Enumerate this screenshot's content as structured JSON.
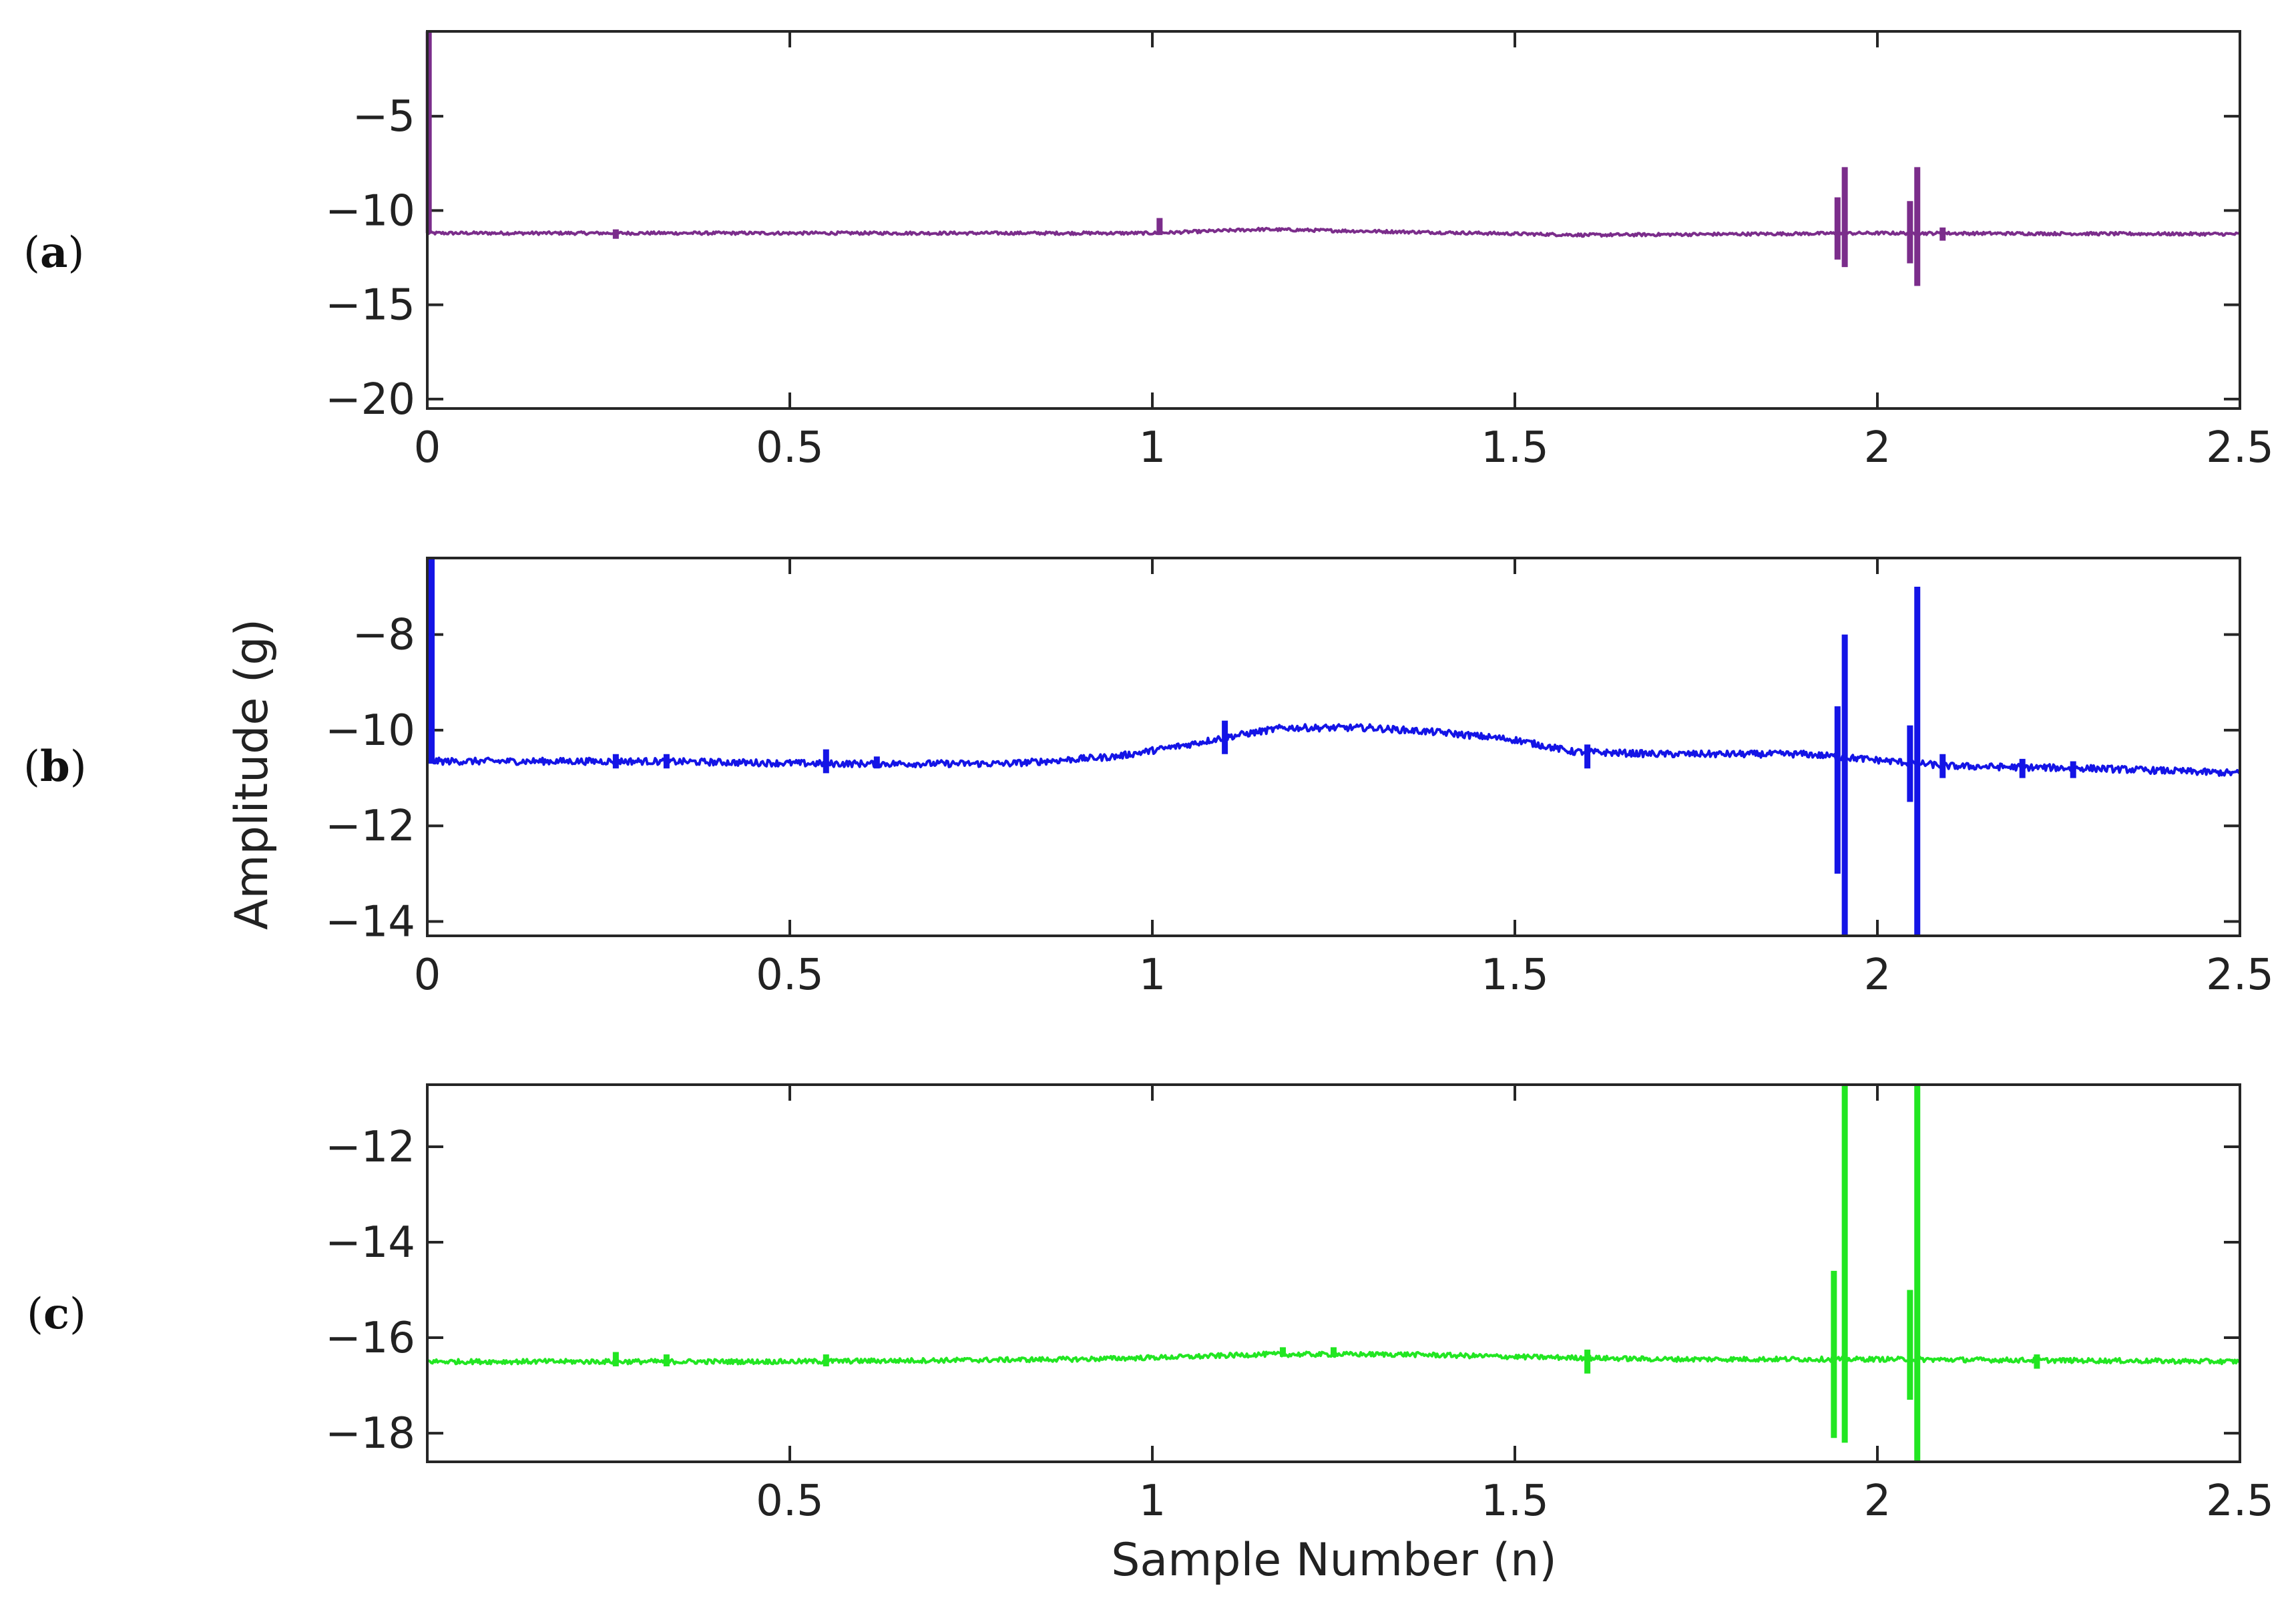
{
  "figure": {
    "xlabel": "Sample Number (n)",
    "ylabel": "Amplitude (g)"
  },
  "chart_data": [
    {
      "type": "line",
      "panel_label": {
        "open": "(",
        "letter": "a",
        "close": ")"
      },
      "color": "#7b2d8b",
      "xlim": [
        0,
        2.5
      ],
      "ylim": [
        -20.5,
        -0.5
      ],
      "xticks": [
        0,
        0.5,
        1,
        1.5,
        2,
        2.5
      ],
      "xtick_labels": [
        "0",
        "0.5",
        "1",
        "1.5",
        "2",
        "2.5"
      ],
      "yticks": [
        -5,
        -10,
        -15,
        -20
      ],
      "ytick_labels": [
        "−5",
        "−10",
        "−15",
        "−20"
      ],
      "baseline": [
        [
          0,
          -11.2
        ],
        [
          0.5,
          -11.2
        ],
        [
          1,
          -11.2
        ],
        [
          1.15,
          -11.0
        ],
        [
          1.3,
          -11.1
        ],
        [
          1.6,
          -11.3
        ],
        [
          2.0,
          -11.2
        ],
        [
          2.5,
          -11.25
        ]
      ],
      "noise": 0.08,
      "spikes": [
        {
          "x": 0.002,
          "ymin": -11.2,
          "ymax": -0.5
        },
        {
          "x": 0.26,
          "ymin": -11.5,
          "ymax": -11.0
        },
        {
          "x": 1.01,
          "ymin": -11.3,
          "ymax": -10.4
        },
        {
          "x": 1.945,
          "ymin": -12.6,
          "ymax": -9.3
        },
        {
          "x": 1.955,
          "ymin": -13.0,
          "ymax": -7.7
        },
        {
          "x": 2.045,
          "ymin": -12.8,
          "ymax": -9.5
        },
        {
          "x": 2.055,
          "ymin": -14.0,
          "ymax": -7.7
        },
        {
          "x": 2.09,
          "ymin": -11.6,
          "ymax": -10.9
        }
      ]
    },
    {
      "type": "line",
      "panel_label": {
        "open": "(",
        "letter": "b",
        "close": ")"
      },
      "color": "#1414e6",
      "xlim": [
        0,
        2.5
      ],
      "ylim": [
        -14.3,
        -6.4
      ],
      "xticks": [
        0,
        0.5,
        1,
        1.5,
        2,
        2.5
      ],
      "xtick_labels": [
        "0",
        "0.5",
        "1",
        "1.5",
        "2",
        "2.5"
      ],
      "yticks": [
        -8,
        -10,
        -12,
        -14
      ],
      "ytick_labels": [
        "−8",
        "−10",
        "−12",
        "−14"
      ],
      "baseline": [
        [
          0,
          -10.65
        ],
        [
          0.3,
          -10.65
        ],
        [
          0.55,
          -10.7
        ],
        [
          0.8,
          -10.7
        ],
        [
          0.95,
          -10.55
        ],
        [
          1.05,
          -10.3
        ],
        [
          1.1,
          -10.15
        ],
        [
          1.18,
          -9.95
        ],
        [
          1.3,
          -9.95
        ],
        [
          1.4,
          -10.05
        ],
        [
          1.5,
          -10.2
        ],
        [
          1.58,
          -10.45
        ],
        [
          1.7,
          -10.5
        ],
        [
          1.9,
          -10.5
        ],
        [
          2.1,
          -10.75
        ],
        [
          2.3,
          -10.8
        ],
        [
          2.5,
          -10.9
        ]
      ],
      "noise": 0.07,
      "spikes": [
        {
          "x": 0.006,
          "ymin": -10.7,
          "ymax": -6.4
        },
        {
          "x": 0.26,
          "ymin": -10.8,
          "ymax": -10.5
        },
        {
          "x": 0.33,
          "ymin": -10.8,
          "ymax": -10.5
        },
        {
          "x": 0.55,
          "ymin": -10.9,
          "ymax": -10.4
        },
        {
          "x": 0.62,
          "ymin": -10.8,
          "ymax": -10.55
        },
        {
          "x": 1.1,
          "ymin": -10.5,
          "ymax": -9.8
        },
        {
          "x": 1.6,
          "ymin": -10.8,
          "ymax": -10.3
        },
        {
          "x": 1.945,
          "ymin": -13.0,
          "ymax": -9.5
        },
        {
          "x": 1.955,
          "ymin": -14.3,
          "ymax": -8.0
        },
        {
          "x": 2.045,
          "ymin": -11.5,
          "ymax": -9.9
        },
        {
          "x": 2.055,
          "ymin": -14.3,
          "ymax": -7.0
        },
        {
          "x": 2.09,
          "ymin": -11.0,
          "ymax": -10.5
        },
        {
          "x": 2.2,
          "ymin": -11.0,
          "ymax": -10.6
        },
        {
          "x": 2.27,
          "ymin": -11.0,
          "ymax": -10.65
        }
      ]
    },
    {
      "type": "line",
      "panel_label": {
        "open": "(",
        "letter": "c",
        "close": ")"
      },
      "color": "#22e622",
      "xlim": [
        0,
        2.5
      ],
      "ylim": [
        -18.6,
        -10.7
      ],
      "xticks": [
        0.5,
        1,
        1.5,
        2,
        2.5
      ],
      "xtick_labels": [
        "0.5",
        "1",
        "1.5",
        "2",
        "2.5"
      ],
      "yticks": [
        -12,
        -14,
        -16,
        -18
      ],
      "ytick_labels": [
        "−12",
        "−14",
        "−16",
        "−18"
      ],
      "baseline": [
        [
          0,
          -16.5
        ],
        [
          0.5,
          -16.5
        ],
        [
          0.9,
          -16.45
        ],
        [
          1.05,
          -16.4
        ],
        [
          1.15,
          -16.35
        ],
        [
          1.35,
          -16.35
        ],
        [
          1.5,
          -16.4
        ],
        [
          1.7,
          -16.45
        ],
        [
          2.0,
          -16.45
        ],
        [
          2.5,
          -16.5
        ]
      ],
      "noise": 0.05,
      "spikes": [
        {
          "x": 0.26,
          "ymin": -16.6,
          "ymax": -16.3
        },
        {
          "x": 0.33,
          "ymin": -16.6,
          "ymax": -16.35
        },
        {
          "x": 0.55,
          "ymin": -16.6,
          "ymax": -16.35
        },
        {
          "x": 1.18,
          "ymin": -16.4,
          "ymax": -16.2
        },
        {
          "x": 1.25,
          "ymin": -16.4,
          "ymax": -16.2
        },
        {
          "x": 1.6,
          "ymin": -16.75,
          "ymax": -16.25
        },
        {
          "x": 1.94,
          "ymin": -18.1,
          "ymax": -14.6
        },
        {
          "x": 1.955,
          "ymin": -18.2,
          "ymax": -10.7
        },
        {
          "x": 2.045,
          "ymin": -17.3,
          "ymax": -15.0
        },
        {
          "x": 2.055,
          "ymin": -18.6,
          "ymax": -10.7
        },
        {
          "x": 2.22,
          "ymin": -16.65,
          "ymax": -16.35
        }
      ]
    }
  ]
}
